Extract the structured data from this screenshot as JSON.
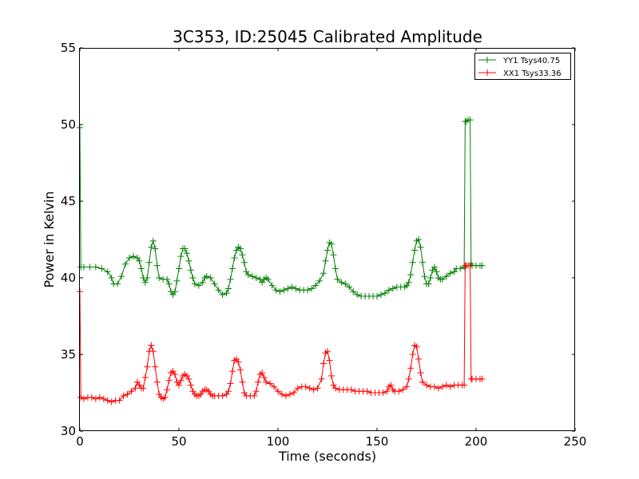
{
  "chart_data": {
    "type": "line",
    "title": "3C353, ID:25045 Calibrated Amplitude",
    "xlabel": "Time (seconds)",
    "ylabel": "Power in Kelvin",
    "xlim": [
      0,
      250
    ],
    "ylim": [
      30,
      55
    ],
    "x_ticks": [
      0,
      50,
      100,
      150,
      200,
      250
    ],
    "y_ticks": [
      30,
      35,
      40,
      45,
      50,
      55
    ],
    "x_tick_labels": [
      "0",
      "50",
      "100",
      "150",
      "200",
      "250"
    ],
    "y_tick_labels": [
      "30",
      "35",
      "40",
      "45",
      "50",
      "55"
    ],
    "grid": false,
    "legend_position": "top-right",
    "marker": "+",
    "series": [
      {
        "name": "YY1 Tsys40.75",
        "color": "#008000",
        "points": [
          [
            0,
            49.8
          ],
          [
            0.5,
            40.7
          ],
          [
            2,
            40.7
          ],
          [
            5,
            40.7
          ],
          [
            8,
            40.7
          ],
          [
            11,
            40.6
          ],
          [
            14,
            40.4
          ],
          [
            16,
            40.0
          ],
          [
            17,
            39.6
          ],
          [
            19,
            39.6
          ],
          [
            21,
            40.1
          ],
          [
            23,
            40.9
          ],
          [
            25,
            41.3
          ],
          [
            27,
            41.4
          ],
          [
            29,
            41.3
          ],
          [
            30,
            41.1
          ],
          [
            31,
            40.6
          ],
          [
            32,
            40.0
          ],
          [
            33,
            39.7
          ],
          [
            34,
            40.0
          ],
          [
            35,
            41.0
          ],
          [
            36,
            42.0
          ],
          [
            37,
            42.4
          ],
          [
            38,
            41.9
          ],
          [
            39,
            40.8
          ],
          [
            40,
            40.0
          ],
          [
            42,
            39.9
          ],
          [
            44,
            39.9
          ],
          [
            45,
            39.6
          ],
          [
            46,
            39.1
          ],
          [
            47,
            38.9
          ],
          [
            48,
            39.1
          ],
          [
            49,
            39.8
          ],
          [
            50,
            40.6
          ],
          [
            51,
            41.4
          ],
          [
            52,
            41.9
          ],
          [
            53,
            41.9
          ],
          [
            54,
            41.6
          ],
          [
            55,
            41.1
          ],
          [
            56,
            40.5
          ],
          [
            57,
            40.0
          ],
          [
            58,
            39.6
          ],
          [
            60,
            39.5
          ],
          [
            62,
            39.7
          ],
          [
            63,
            40.0
          ],
          [
            64,
            40.1
          ],
          [
            66,
            40.0
          ],
          [
            68,
            39.6
          ],
          [
            70,
            39.2
          ],
          [
            72,
            38.9
          ],
          [
            74,
            39.0
          ],
          [
            75,
            39.3
          ],
          [
            76,
            39.9
          ],
          [
            77,
            40.6
          ],
          [
            78,
            41.3
          ],
          [
            79,
            41.8
          ],
          [
            80,
            42.0
          ],
          [
            81,
            41.9
          ],
          [
            82,
            41.5
          ],
          [
            83,
            41.0
          ],
          [
            84,
            40.4
          ],
          [
            85,
            40.2
          ],
          [
            87,
            40.1
          ],
          [
            89,
            40.0
          ],
          [
            91,
            39.9
          ],
          [
            92,
            39.7
          ],
          [
            93,
            39.9
          ],
          [
            94,
            40.0
          ],
          [
            95,
            39.9
          ],
          [
            97,
            39.5
          ],
          [
            99,
            39.2
          ],
          [
            101,
            39.1
          ],
          [
            103,
            39.2
          ],
          [
            105,
            39.3
          ],
          [
            107,
            39.4
          ],
          [
            109,
            39.3
          ],
          [
            111,
            39.2
          ],
          [
            113,
            39.2
          ],
          [
            115,
            39.2
          ],
          [
            117,
            39.3
          ],
          [
            119,
            39.5
          ],
          [
            121,
            39.8
          ],
          [
            123,
            40.3
          ],
          [
            124,
            41.1
          ],
          [
            125,
            41.8
          ],
          [
            126,
            42.3
          ],
          [
            127,
            42.2
          ],
          [
            128,
            41.5
          ],
          [
            129,
            40.6
          ],
          [
            130,
            39.9
          ],
          [
            132,
            39.7
          ],
          [
            134,
            39.6
          ],
          [
            136,
            39.4
          ],
          [
            138,
            39.1
          ],
          [
            140,
            38.9
          ],
          [
            142,
            38.8
          ],
          [
            144,
            38.8
          ],
          [
            146,
            38.8
          ],
          [
            148,
            38.8
          ],
          [
            150,
            38.8
          ],
          [
            152,
            38.9
          ],
          [
            154,
            39.0
          ],
          [
            156,
            39.2
          ],
          [
            158,
            39.3
          ],
          [
            160,
            39.4
          ],
          [
            162,
            39.4
          ],
          [
            164,
            39.4
          ],
          [
            165,
            39.5
          ],
          [
            166,
            39.7
          ],
          [
            167,
            40.2
          ],
          [
            168,
            41.0
          ],
          [
            169,
            41.8
          ],
          [
            170,
            42.4
          ],
          [
            171,
            42.5
          ],
          [
            172,
            42.0
          ],
          [
            173,
            41.0
          ],
          [
            174,
            40.1
          ],
          [
            175,
            39.6
          ],
          [
            176,
            39.6
          ],
          [
            177,
            40.0
          ],
          [
            178,
            40.5
          ],
          [
            179,
            40.7
          ],
          [
            180,
            40.4
          ],
          [
            181,
            40.0
          ],
          [
            182,
            39.9
          ],
          [
            183,
            39.9
          ],
          [
            185,
            40.1
          ],
          [
            187,
            40.3
          ],
          [
            189,
            40.4
          ],
          [
            190,
            40.6
          ],
          [
            192,
            40.6
          ],
          [
            194,
            40.7
          ],
          [
            194.5,
            50.2
          ],
          [
            195,
            50.2
          ],
          [
            196,
            50.3
          ],
          [
            197,
            50.3
          ],
          [
            197.5,
            40.9
          ],
          [
            198,
            40.8
          ],
          [
            200,
            40.8
          ],
          [
            202,
            40.8
          ],
          [
            203,
            40.8
          ]
        ]
      },
      {
        "name": "XX1 Tsys33.36",
        "color": "#ff0000",
        "points": [
          [
            0,
            39.1
          ],
          [
            0.5,
            32.2
          ],
          [
            2,
            32.1
          ],
          [
            4,
            32.2
          ],
          [
            6,
            32.2
          ],
          [
            8,
            32.1
          ],
          [
            10,
            32.2
          ],
          [
            12,
            32.1
          ],
          [
            14,
            32.0
          ],
          [
            16,
            31.9
          ],
          [
            18,
            32.0
          ],
          [
            20,
            32.0
          ],
          [
            22,
            32.3
          ],
          [
            24,
            32.4
          ],
          [
            26,
            32.6
          ],
          [
            28,
            32.8
          ],
          [
            29,
            33.2
          ],
          [
            30,
            33.0
          ],
          [
            31,
            32.8
          ],
          [
            32,
            32.8
          ],
          [
            33,
            33.5
          ],
          [
            34,
            34.2
          ],
          [
            35,
            35.2
          ],
          [
            36,
            35.6
          ],
          [
            37,
            35.2
          ],
          [
            38,
            34.2
          ],
          [
            39,
            33.2
          ],
          [
            40,
            32.4
          ],
          [
            41,
            32.2
          ],
          [
            42,
            32.1
          ],
          [
            43,
            32.2
          ],
          [
            44,
            32.7
          ],
          [
            45,
            33.3
          ],
          [
            46,
            33.8
          ],
          [
            47,
            33.9
          ],
          [
            48,
            33.7
          ],
          [
            49,
            33.2
          ],
          [
            50,
            33.0
          ],
          [
            51,
            33.3
          ],
          [
            52,
            33.6
          ],
          [
            53,
            33.7
          ],
          [
            54,
            33.6
          ],
          [
            55,
            33.4
          ],
          [
            56,
            33.0
          ],
          [
            57,
            32.6
          ],
          [
            58,
            32.4
          ],
          [
            59,
            32.3
          ],
          [
            60,
            32.3
          ],
          [
            61,
            32.4
          ],
          [
            62,
            32.6
          ],
          [
            63,
            32.7
          ],
          [
            64,
            32.7
          ],
          [
            65,
            32.6
          ],
          [
            66,
            32.4
          ],
          [
            67,
            32.3
          ],
          [
            68,
            32.3
          ],
          [
            70,
            32.3
          ],
          [
            72,
            32.3
          ],
          [
            74,
            32.4
          ],
          [
            75,
            32.6
          ],
          [
            76,
            33.1
          ],
          [
            77,
            33.9
          ],
          [
            78,
            34.6
          ],
          [
            79,
            34.7
          ],
          [
            80,
            34.5
          ],
          [
            81,
            34.0
          ],
          [
            82,
            33.2
          ],
          [
            83,
            32.5
          ],
          [
            84,
            32.3
          ],
          [
            86,
            32.3
          ],
          [
            88,
            32.3
          ],
          [
            89,
            32.6
          ],
          [
            90,
            33.2
          ],
          [
            91,
            33.7
          ],
          [
            92,
            33.8
          ],
          [
            93,
            33.5
          ],
          [
            94,
            33.2
          ],
          [
            96,
            33.1
          ],
          [
            98,
            32.9
          ],
          [
            100,
            32.6
          ],
          [
            102,
            32.4
          ],
          [
            104,
            32.3
          ],
          [
            106,
            32.4
          ],
          [
            108,
            32.5
          ],
          [
            110,
            32.8
          ],
          [
            112,
            32.9
          ],
          [
            114,
            32.9
          ],
          [
            116,
            32.8
          ],
          [
            118,
            32.7
          ],
          [
            120,
            32.8
          ],
          [
            122,
            33.4
          ],
          [
            123,
            34.4
          ],
          [
            124,
            35.1
          ],
          [
            125,
            35.2
          ],
          [
            126,
            34.6
          ],
          [
            127,
            33.6
          ],
          [
            128,
            33.0
          ],
          [
            129,
            32.8
          ],
          [
            131,
            32.7
          ],
          [
            133,
            32.7
          ],
          [
            135,
            32.7
          ],
          [
            137,
            32.7
          ],
          [
            139,
            32.6
          ],
          [
            141,
            32.6
          ],
          [
            143,
            32.6
          ],
          [
            145,
            32.6
          ],
          [
            147,
            32.5
          ],
          [
            149,
            32.5
          ],
          [
            151,
            32.5
          ],
          [
            153,
            32.5
          ],
          [
            155,
            32.6
          ],
          [
            156,
            32.9
          ],
          [
            157,
            33.0
          ],
          [
            158,
            32.7
          ],
          [
            159,
            32.6
          ],
          [
            161,
            32.6
          ],
          [
            163,
            32.7
          ],
          [
            165,
            32.9
          ],
          [
            166,
            33.4
          ],
          [
            167,
            34.1
          ],
          [
            168,
            35.0
          ],
          [
            169,
            35.6
          ],
          [
            170,
            35.5
          ],
          [
            171,
            34.7
          ],
          [
            172,
            33.8
          ],
          [
            173,
            33.2
          ],
          [
            175,
            33.0
          ],
          [
            177,
            32.9
          ],
          [
            179,
            32.9
          ],
          [
            181,
            32.8
          ],
          [
            183,
            32.9
          ],
          [
            185,
            33.0
          ],
          [
            187,
            32.9
          ],
          [
            189,
            33.0
          ],
          [
            191,
            33.0
          ],
          [
            193,
            33.0
          ],
          [
            194,
            33.0
          ],
          [
            194.5,
            40.8
          ],
          [
            195,
            40.8
          ],
          [
            196,
            40.8
          ],
          [
            197,
            40.8
          ],
          [
            197.5,
            33.4
          ],
          [
            198,
            33.4
          ],
          [
            200,
            33.4
          ],
          [
            202,
            33.4
          ],
          [
            203,
            33.4
          ]
        ]
      }
    ]
  }
}
